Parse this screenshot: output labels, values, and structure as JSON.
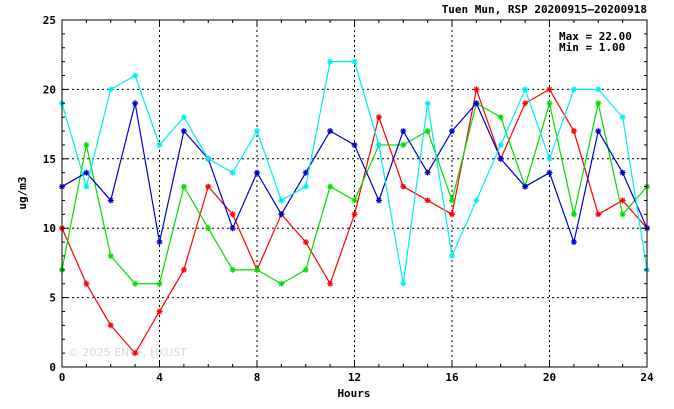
{
  "chart_data": {
    "type": "line",
    "title": "Tuen Mun, RSP 20200915—20200918",
    "xlabel": "Hours",
    "ylabel": "ug/m3",
    "xlim": [
      0,
      24
    ],
    "ylim": [
      0,
      25
    ],
    "x_ticks": [
      0,
      4,
      8,
      12,
      16,
      20,
      24
    ],
    "y_ticks": [
      0,
      5,
      10,
      15,
      20,
      25
    ],
    "grid": true,
    "max_label": "Max = 22.00",
    "min_label": "Min =  1.00",
    "watermark": "© 2025  ENVF, HKUST",
    "x": [
      0,
      1,
      2,
      3,
      4,
      5,
      6,
      7,
      8,
      9,
      10,
      11,
      12,
      13,
      14,
      15,
      16,
      17,
      18,
      19,
      20,
      21,
      22,
      23,
      24
    ],
    "series": [
      {
        "color": "#ff0000",
        "values": [
          10,
          6,
          3,
          1,
          4,
          7,
          13,
          11,
          7,
          11,
          9,
          6,
          11,
          18,
          13,
          12,
          11,
          20,
          15,
          19,
          20,
          17,
          11,
          12,
          10
        ]
      },
      {
        "color": "#00dd00",
        "values": [
          7,
          16,
          8,
          6,
          6,
          13,
          10,
          7,
          7,
          6,
          7,
          13,
          12,
          16,
          16,
          17,
          12,
          19,
          18,
          13,
          19,
          11,
          19,
          11,
          13
        ]
      },
      {
        "color": "#0000cc",
        "values": [
          13,
          14,
          12,
          19,
          9,
          17,
          15,
          10,
          14,
          11,
          14,
          17,
          16,
          12,
          17,
          14,
          17,
          19,
          15,
          13,
          14,
          9,
          17,
          14,
          10
        ]
      },
      {
        "color": "#00eeee",
        "values": [
          19,
          13,
          20,
          21,
          16,
          18,
          15,
          14,
          17,
          12,
          13,
          22,
          22,
          16,
          6,
          19,
          8,
          12,
          16,
          20,
          15,
          20,
          20,
          18,
          7
        ]
      }
    ]
  }
}
